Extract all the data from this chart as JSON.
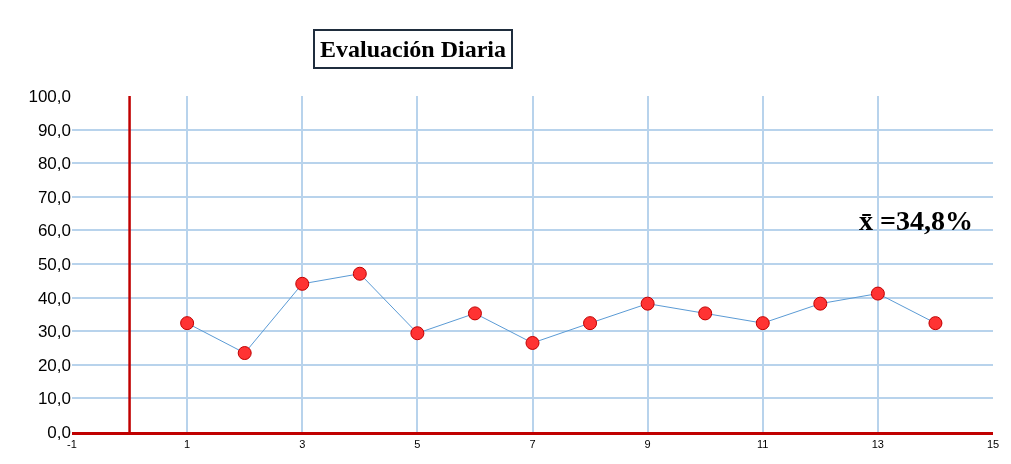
{
  "chart_data": {
    "type": "line",
    "title": "Evaluación Diaria",
    "x": [
      1,
      2,
      3,
      4,
      5,
      6,
      7,
      8,
      9,
      10,
      11,
      12,
      13,
      14
    ],
    "series": [
      {
        "color": "#ff3333",
        "values": [
          32.4,
          23.5,
          44.1,
          47.1,
          29.4,
          35.3,
          26.5,
          32.4,
          38.2,
          35.3,
          32.4,
          38.2,
          41.2,
          32.4
        ]
      }
    ],
    "xlim": [
      -1,
      15
    ],
    "xticks": [
      -1,
      1,
      3,
      5,
      7,
      9,
      11,
      13,
      15
    ],
    "ylim": [
      0,
      100
    ],
    "yticks": [
      {
        "value": 0,
        "label": "0,0"
      },
      {
        "value": 10,
        "label": "10,0"
      },
      {
        "value": 20,
        "label": "20,0"
      },
      {
        "value": 30,
        "label": "30,0"
      },
      {
        "value": 40,
        "label": "40,0"
      },
      {
        "value": 50,
        "label": "50,0"
      },
      {
        "value": 60,
        "label": "60,0"
      },
      {
        "value": 70,
        "label": "70,0"
      },
      {
        "value": 80,
        "label": "80,0"
      },
      {
        "value": 90,
        "label": "90,0"
      },
      {
        "value": 100,
        "label": "100,0"
      }
    ],
    "grid": true,
    "marker": "circle",
    "line_style": "solid",
    "ref_lines": [
      {
        "axis": "x",
        "value": 0,
        "color": "#c00000"
      }
    ],
    "annotations": [
      "x̄ =34,8%"
    ]
  }
}
